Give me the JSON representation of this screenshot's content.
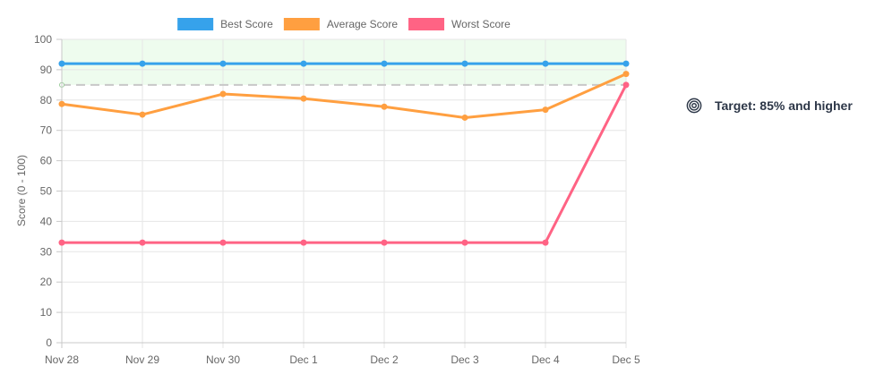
{
  "chart_data": {
    "type": "line",
    "categories": [
      "Nov 28",
      "Nov 29",
      "Nov 30",
      "Dec 1",
      "Dec 2",
      "Dec 3",
      "Dec 4",
      "Dec 5"
    ],
    "series": [
      {
        "name": "Best Score",
        "color": "#36a2eb",
        "values": [
          92,
          92,
          92,
          92,
          92,
          92,
          92,
          92
        ]
      },
      {
        "name": "Average Score",
        "color": "#ff9f40",
        "values": [
          78.7,
          75.2,
          82,
          80.5,
          77.8,
          74.2,
          76.8,
          88.6
        ]
      },
      {
        "name": "Worst Score",
        "color": "#ff6384",
        "values": [
          33,
          33,
          33,
          33,
          33,
          33,
          33,
          85
        ]
      }
    ],
    "target_line": {
      "value": 85,
      "color": "#c8c8c8"
    },
    "target_band": {
      "from": 85,
      "to": 100,
      "color": "#eefcee"
    },
    "ylabel": "Score  (0 - 100)",
    "xlabel": "",
    "ylim": [
      0,
      100
    ],
    "yticks": [
      "0",
      "10",
      "20",
      "30",
      "40",
      "50",
      "60",
      "70",
      "80",
      "90",
      "100"
    ],
    "grid": true,
    "legend": "top"
  },
  "target_panel": {
    "icon": "target-icon",
    "text": "Target: 85% and higher"
  }
}
